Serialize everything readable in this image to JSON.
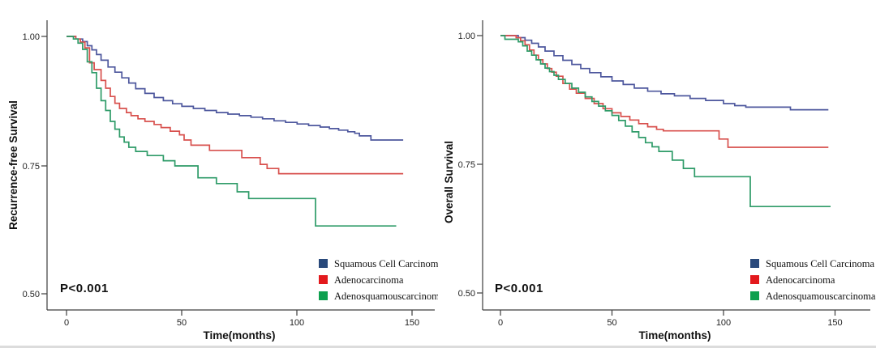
{
  "legend": {
    "items": [
      {
        "label": "Squamous Cell Carcinoma",
        "swatch": "#29497b"
      },
      {
        "label": "Adenocarcinoma",
        "swatch": "#e3191d"
      },
      {
        "label": "Adenosquamouscarcinoma",
        "swatch": "#0ea04f"
      }
    ]
  },
  "chart_data": [
    {
      "type": "line",
      "subtype": "kaplan-meier-step",
      "ylabel": "Recurrence-free Survival",
      "xlabel": "Time(months)",
      "p_value": "P<0.001",
      "xlim": [
        0,
        150
      ],
      "ylim": [
        0.5,
        1.0
      ],
      "grid": false,
      "legend_position": "bottom-right-inside",
      "yticks": [
        "1.00",
        "0.75",
        "0.50"
      ],
      "xticks": [
        "0",
        "50",
        "100",
        "150"
      ],
      "series": [
        {
          "id": "scc",
          "name": "Squamous Cell Carcinoma",
          "color": "#4d579d",
          "points": [
            [
              0,
              1
            ],
            [
              4,
              0.995
            ],
            [
              7,
              0.99
            ],
            [
              9,
              0.982
            ],
            [
              11,
              0.974
            ],
            [
              13,
              0.965
            ],
            [
              15,
              0.954
            ],
            [
              18,
              0.941
            ],
            [
              21,
              0.931
            ],
            [
              24,
              0.92
            ],
            [
              27,
              0.91
            ],
            [
              30,
              0.899
            ],
            [
              34,
              0.89
            ],
            [
              38,
              0.882
            ],
            [
              42,
              0.876
            ],
            [
              46,
              0.87
            ],
            [
              50,
              0.865
            ],
            [
              55,
              0.861
            ],
            [
              60,
              0.857
            ],
            [
              65,
              0.853
            ],
            [
              70,
              0.85
            ],
            [
              75,
              0.847
            ],
            [
              80,
              0.844
            ],
            [
              85,
              0.841
            ],
            [
              90,
              0.837
            ],
            [
              95,
              0.834
            ],
            [
              100,
              0.831
            ],
            [
              105,
              0.828
            ],
            [
              110,
              0.825
            ],
            [
              114,
              0.822
            ],
            [
              118,
              0.819
            ],
            [
              122,
              0.816
            ],
            [
              125,
              0.813
            ],
            [
              127,
              0.808
            ],
            [
              132,
              0.8
            ],
            [
              146,
              0.8
            ]
          ]
        },
        {
          "id": "adeno",
          "name": "Adenocarcinoma",
          "color": "#d8504d",
          "points": [
            [
              0,
              1
            ],
            [
              4,
              0.995
            ],
            [
              6,
              0.989
            ],
            [
              8,
              0.978
            ],
            [
              10,
              0.949
            ],
            [
              12,
              0.936
            ],
            [
              15,
              0.915
            ],
            [
              17,
              0.9
            ],
            [
              19,
              0.884
            ],
            [
              21,
              0.871
            ],
            [
              23,
              0.861
            ],
            [
              26,
              0.853
            ],
            [
              28,
              0.847
            ],
            [
              31,
              0.841
            ],
            [
              34,
              0.836
            ],
            [
              38,
              0.83
            ],
            [
              41,
              0.824
            ],
            [
              45,
              0.817
            ],
            [
              49,
              0.81
            ],
            [
              51,
              0.8
            ],
            [
              54,
              0.79
            ],
            [
              62,
              0.78
            ],
            [
              76,
              0.766
            ],
            [
              84,
              0.753
            ],
            [
              87,
              0.745
            ],
            [
              92,
              0.735
            ],
            [
              146,
              0.735
            ]
          ]
        },
        {
          "id": "adsq",
          "name": "Adenosquamouscarcinoma",
          "color": "#2e9b68",
          "points": [
            [
              0,
              1
            ],
            [
              3,
              0.995
            ],
            [
              5,
              0.987
            ],
            [
              7,
              0.975
            ],
            [
              9,
              0.951
            ],
            [
              11,
              0.93
            ],
            [
              13,
              0.9
            ],
            [
              15,
              0.876
            ],
            [
              17,
              0.857
            ],
            [
              19,
              0.836
            ],
            [
              21,
              0.821
            ],
            [
              23,
              0.806
            ],
            [
              25,
              0.796
            ],
            [
              27,
              0.786
            ],
            [
              30,
              0.778
            ],
            [
              35,
              0.77
            ],
            [
              42,
              0.76
            ],
            [
              47,
              0.75
            ],
            [
              57,
              0.727
            ],
            [
              65,
              0.716
            ],
            [
              74,
              0.7
            ],
            [
              79,
              0.687
            ],
            [
              108,
              0.634
            ],
            [
              143,
              0.634
            ]
          ]
        }
      ]
    },
    {
      "type": "line",
      "subtype": "kaplan-meier-step",
      "ylabel": "Overall Survival",
      "xlabel": "Time(months)",
      "p_value": "P<0.001",
      "xlim": [
        0,
        150
      ],
      "ylim": [
        0.5,
        1.0
      ],
      "grid": false,
      "legend_position": "bottom-right-inside",
      "yticks": [
        "1.00",
        "0.75",
        "0.50"
      ],
      "xticks": [
        "0",
        "50",
        "100",
        "150"
      ],
      "series": [
        {
          "id": "scc",
          "name": "Squamous Cell Carcinoma",
          "color": "#4d579d",
          "points": [
            [
              0,
              1
            ],
            [
              8,
              0.996
            ],
            [
              11,
              0.991
            ],
            [
              14,
              0.985
            ],
            [
              17,
              0.978
            ],
            [
              20,
              0.97
            ],
            [
              24,
              0.961
            ],
            [
              28,
              0.952
            ],
            [
              32,
              0.944
            ],
            [
              36,
              0.936
            ],
            [
              40,
              0.928
            ],
            [
              45,
              0.92
            ],
            [
              50,
              0.912
            ],
            [
              55,
              0.905
            ],
            [
              60,
              0.898
            ],
            [
              66,
              0.892
            ],
            [
              72,
              0.887
            ],
            [
              78,
              0.883
            ],
            [
              85,
              0.878
            ],
            [
              92,
              0.874
            ],
            [
              100,
              0.868
            ],
            [
              105,
              0.864
            ],
            [
              110,
              0.861
            ],
            [
              130,
              0.856
            ],
            [
              147,
              0.856
            ]
          ]
        },
        {
          "id": "adeno",
          "name": "Adenocarcinoma",
          "color": "#d8504d",
          "points": [
            [
              0,
              1
            ],
            [
              7,
              0.996
            ],
            [
              9,
              0.99
            ],
            [
              11,
              0.982
            ],
            [
              13,
              0.972
            ],
            [
              15,
              0.962
            ],
            [
              17,
              0.953
            ],
            [
              19,
              0.945
            ],
            [
              21,
              0.936
            ],
            [
              23,
              0.929
            ],
            [
              25,
              0.921
            ],
            [
              28,
              0.907
            ],
            [
              31,
              0.896
            ],
            [
              34,
              0.888
            ],
            [
              38,
              0.878
            ],
            [
              42,
              0.868
            ],
            [
              46,
              0.858
            ],
            [
              50,
              0.85
            ],
            [
              54,
              0.843
            ],
            [
              58,
              0.836
            ],
            [
              62,
              0.829
            ],
            [
              66,
              0.823
            ],
            [
              70,
              0.818
            ],
            [
              73,
              0.815
            ],
            [
              98,
              0.799
            ],
            [
              102,
              0.783
            ],
            [
              147,
              0.783
            ]
          ]
        },
        {
          "id": "adsq",
          "name": "Adenosquamouscarcinoma",
          "color": "#2e9b68",
          "points": [
            [
              0,
              1
            ],
            [
              2,
              0.993
            ],
            [
              8,
              0.988
            ],
            [
              10,
              0.98
            ],
            [
              12,
              0.97
            ],
            [
              14,
              0.962
            ],
            [
              16,
              0.953
            ],
            [
              18,
              0.945
            ],
            [
              20,
              0.937
            ],
            [
              22,
              0.93
            ],
            [
              24,
              0.923
            ],
            [
              26,
              0.915
            ],
            [
              29,
              0.907
            ],
            [
              32,
              0.898
            ],
            [
              35,
              0.89
            ],
            [
              38,
              0.881
            ],
            [
              41,
              0.872
            ],
            [
              44,
              0.863
            ],
            [
              47,
              0.854
            ],
            [
              50,
              0.845
            ],
            [
              53,
              0.835
            ],
            [
              56,
              0.824
            ],
            [
              59,
              0.813
            ],
            [
              62,
              0.802
            ],
            [
              65,
              0.792
            ],
            [
              68,
              0.784
            ],
            [
              71,
              0.775
            ],
            [
              77,
              0.758
            ],
            [
              82,
              0.742
            ],
            [
              87,
              0.726
            ],
            [
              112,
              0.668
            ],
            [
              148,
              0.668
            ]
          ]
        }
      ]
    }
  ]
}
